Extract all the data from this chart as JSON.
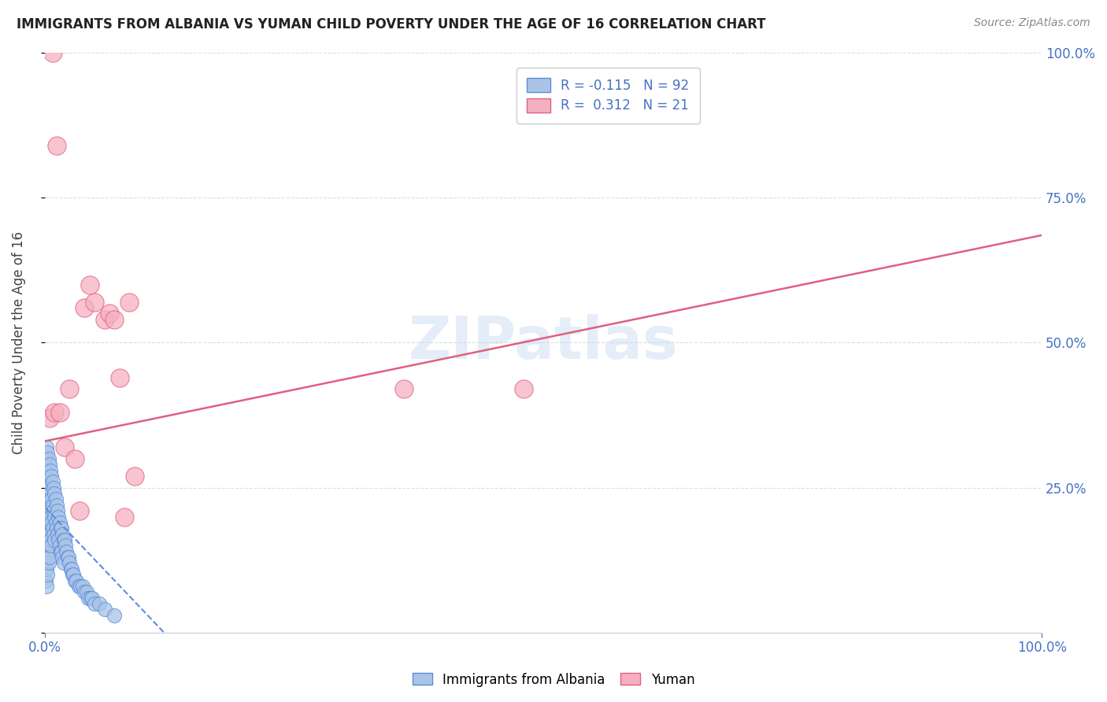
{
  "title": "IMMIGRANTS FROM ALBANIA VS YUMAN CHILD POVERTY UNDER THE AGE OF 16 CORRELATION CHART",
  "source": "Source: ZipAtlas.com",
  "ylabel": "Child Poverty Under the Age of 16",
  "xlim": [
    0.0,
    1.0
  ],
  "ylim": [
    0.0,
    1.0
  ],
  "grid_color": "#dddddd",
  "background_color": "#ffffff",
  "watermark": "ZIPatlas",
  "albania_color": "#aac4e8",
  "albania_edge_color": "#5b8dd9",
  "yuman_color": "#f5b0c0",
  "yuman_edge_color": "#e06080",
  "albania_R": -0.115,
  "albania_N": 92,
  "yuman_R": 0.312,
  "yuman_N": 21,
  "legend_albania_label": "Immigrants from Albania",
  "legend_yuman_label": "Yuman",
  "albania_x": [
    0.001,
    0.001,
    0.001,
    0.001,
    0.001,
    0.001,
    0.001,
    0.002,
    0.002,
    0.002,
    0.002,
    0.002,
    0.002,
    0.002,
    0.002,
    0.003,
    0.003,
    0.003,
    0.003,
    0.003,
    0.003,
    0.003,
    0.004,
    0.004,
    0.004,
    0.004,
    0.004,
    0.004,
    0.005,
    0.005,
    0.005,
    0.005,
    0.005,
    0.006,
    0.006,
    0.006,
    0.006,
    0.007,
    0.007,
    0.007,
    0.007,
    0.008,
    0.008,
    0.008,
    0.009,
    0.009,
    0.009,
    0.01,
    0.01,
    0.01,
    0.011,
    0.011,
    0.012,
    0.012,
    0.013,
    0.013,
    0.014,
    0.014,
    0.015,
    0.015,
    0.016,
    0.016,
    0.017,
    0.017,
    0.018,
    0.018,
    0.019,
    0.019,
    0.02,
    0.021,
    0.022,
    0.023,
    0.024,
    0.025,
    0.026,
    0.027,
    0.028,
    0.029,
    0.03,
    0.032,
    0.034,
    0.036,
    0.038,
    0.04,
    0.042,
    0.044,
    0.046,
    0.048,
    0.05,
    0.055,
    0.06,
    0.07
  ],
  "albania_y": [
    0.3,
    0.27,
    0.22,
    0.18,
    0.15,
    0.12,
    0.09,
    0.32,
    0.28,
    0.25,
    0.22,
    0.18,
    0.14,
    0.11,
    0.08,
    0.31,
    0.27,
    0.24,
    0.2,
    0.17,
    0.13,
    0.1,
    0.3,
    0.26,
    0.22,
    0.19,
    0.15,
    0.12,
    0.29,
    0.25,
    0.21,
    0.17,
    0.13,
    0.28,
    0.24,
    0.2,
    0.16,
    0.27,
    0.23,
    0.19,
    0.15,
    0.26,
    0.22,
    0.18,
    0.25,
    0.21,
    0.17,
    0.24,
    0.2,
    0.16,
    0.23,
    0.19,
    0.22,
    0.18,
    0.21,
    0.17,
    0.2,
    0.16,
    0.19,
    0.15,
    0.18,
    0.14,
    0.18,
    0.14,
    0.17,
    0.13,
    0.16,
    0.12,
    0.16,
    0.15,
    0.14,
    0.13,
    0.13,
    0.12,
    0.11,
    0.11,
    0.1,
    0.1,
    0.09,
    0.09,
    0.08,
    0.08,
    0.08,
    0.07,
    0.07,
    0.06,
    0.06,
    0.06,
    0.05,
    0.05,
    0.04,
    0.03
  ],
  "yuman_x": [
    0.005,
    0.008,
    0.01,
    0.012,
    0.015,
    0.02,
    0.025,
    0.03,
    0.035,
    0.04,
    0.045,
    0.05,
    0.06,
    0.065,
    0.07,
    0.075,
    0.08,
    0.085,
    0.09,
    0.48,
    0.36
  ],
  "yuman_y": [
    0.37,
    1.0,
    0.38,
    0.84,
    0.38,
    0.32,
    0.42,
    0.3,
    0.21,
    0.56,
    0.6,
    0.57,
    0.54,
    0.55,
    0.54,
    0.44,
    0.2,
    0.57,
    0.27,
    0.42,
    0.42
  ],
  "yuman_line_x0": 0.0,
  "yuman_line_y0": 0.33,
  "yuman_line_x1": 1.0,
  "yuman_line_y1": 0.685,
  "albania_line_x0": 0.001,
  "albania_line_y0": 0.215,
  "albania_line_x1": 0.12,
  "albania_line_y1": 0.0
}
